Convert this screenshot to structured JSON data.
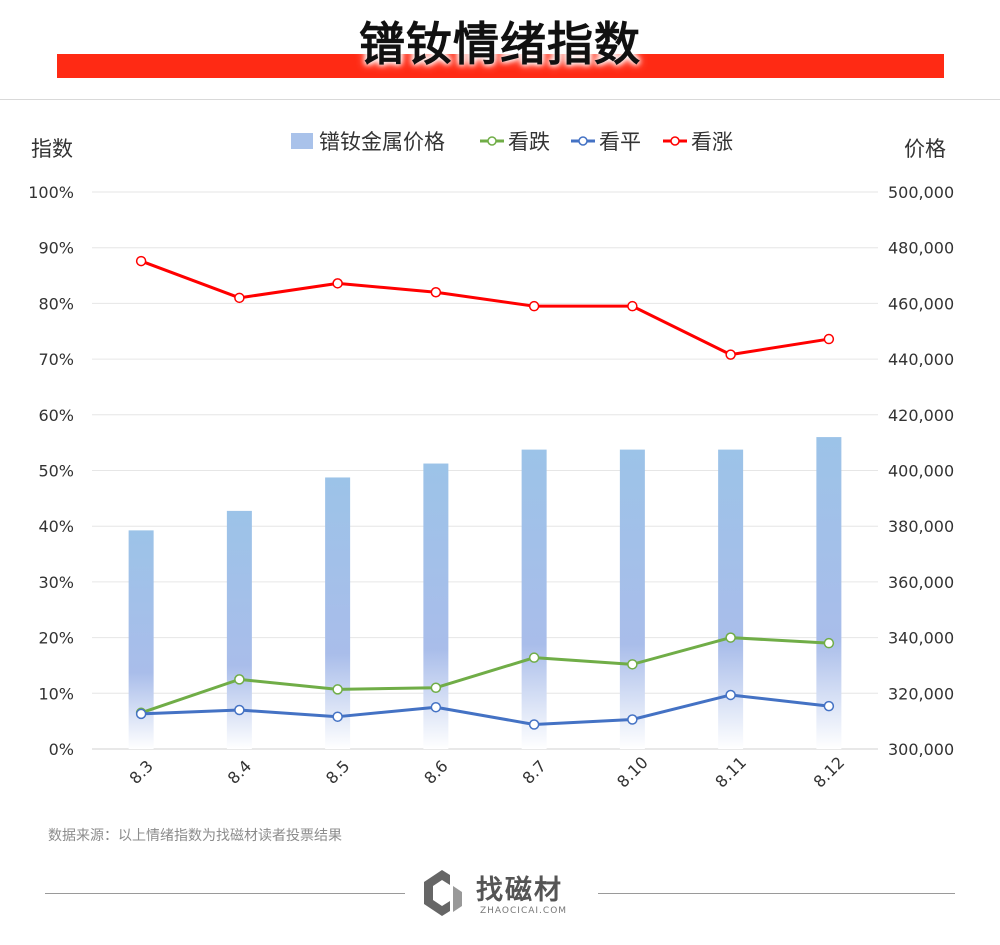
{
  "page_title": "镨钕情绪指数",
  "source_note": "数据来源：以上情绪指数为找磁材读者投票结果",
  "logo": {
    "name": "找磁材",
    "url_text": "ZHAOCICAI.COM"
  },
  "chart_data": {
    "type": "bar+line",
    "categories": [
      "8.3",
      "8.4",
      "8.5",
      "8.6",
      "8.7",
      "8.10",
      "8.11",
      "8.12"
    ],
    "left_axis": {
      "label": "指数",
      "min": 0,
      "max": 100,
      "step": 10,
      "ticks": [
        "0%",
        "10%",
        "20%",
        "30%",
        "40%",
        "50%",
        "60%",
        "70%",
        "80%",
        "90%",
        "100%"
      ]
    },
    "right_axis": {
      "label": "价格",
      "min": 300000,
      "max": 500000,
      "step": 20000,
      "ticks": [
        "300,000",
        "320,000",
        "340,000",
        "360,000",
        "380,000",
        "400,000",
        "420,000",
        "440,000",
        "460,000",
        "480,000",
        "500,000"
      ]
    },
    "bar_series": {
      "name": "镨钕金属价格",
      "axis": "right",
      "values": [
        378500,
        385500,
        397500,
        402500,
        407500,
        407500,
        407500,
        412000
      ]
    },
    "line_series": [
      {
        "name": "看跌",
        "color": "#70ad47",
        "axis": "left",
        "values": [
          6.5,
          12.5,
          10.7,
          11.0,
          16.4,
          15.2,
          20.0,
          19.0
        ]
      },
      {
        "name": "看平",
        "color": "#4472c4",
        "axis": "left",
        "values": [
          6.3,
          7.0,
          5.8,
          7.5,
          4.4,
          5.3,
          9.7,
          7.7
        ]
      },
      {
        "name": "看涨",
        "color": "#ff0000",
        "axis": "left",
        "values": [
          87.6,
          81.0,
          83.6,
          82.0,
          79.5,
          79.5,
          70.8,
          73.6
        ]
      }
    ],
    "legend_position": "top",
    "grid": true
  }
}
